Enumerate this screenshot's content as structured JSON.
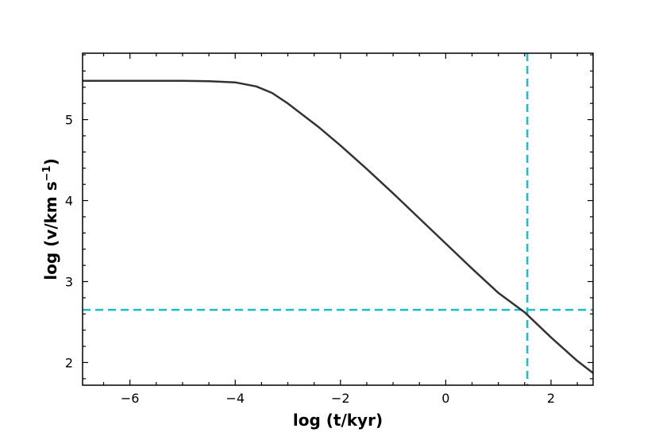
{
  "chart_data": {
    "type": "line",
    "title": "",
    "xlabel": "log (t/kyr)",
    "ylabel_main": "log (v/km s",
    "ylabel_sup": "−1",
    "ylabel_close": ")",
    "xlim": [
      -6.9,
      2.8
    ],
    "ylim": [
      1.72,
      5.82
    ],
    "xticks": [
      -6,
      -4,
      -2,
      0,
      2
    ],
    "xtick_labels": [
      "−6",
      "−4",
      "−2",
      "0",
      "2"
    ],
    "yticks": [
      2,
      3,
      4,
      5
    ],
    "ytick_labels": [
      "2",
      "3",
      "4",
      "5"
    ],
    "grid": false,
    "series": [
      {
        "color": "#333333",
        "style": "solid",
        "x": [
          -6.9,
          -6.0,
          -5.0,
          -4.5,
          -4.0,
          -3.6,
          -3.3,
          -3.0,
          -2.7,
          -2.4,
          -2.0,
          -1.5,
          -1.0,
          -0.5,
          0.0,
          0.5,
          1.0,
          1.5,
          2.0,
          2.5,
          2.8
        ],
        "y": [
          5.48,
          5.48,
          5.48,
          5.475,
          5.46,
          5.41,
          5.33,
          5.2,
          5.05,
          4.9,
          4.68,
          4.39,
          4.09,
          3.78,
          3.47,
          3.16,
          2.86,
          2.62,
          2.31,
          2.02,
          1.87
        ]
      }
    ],
    "reference_lines": [
      {
        "orientation": "vertical",
        "value": 1.55,
        "color": "#17BECF",
        "style": "dashed"
      },
      {
        "orientation": "horizontal",
        "value": 2.65,
        "color": "#17BECF",
        "style": "dashed"
      }
    ]
  }
}
